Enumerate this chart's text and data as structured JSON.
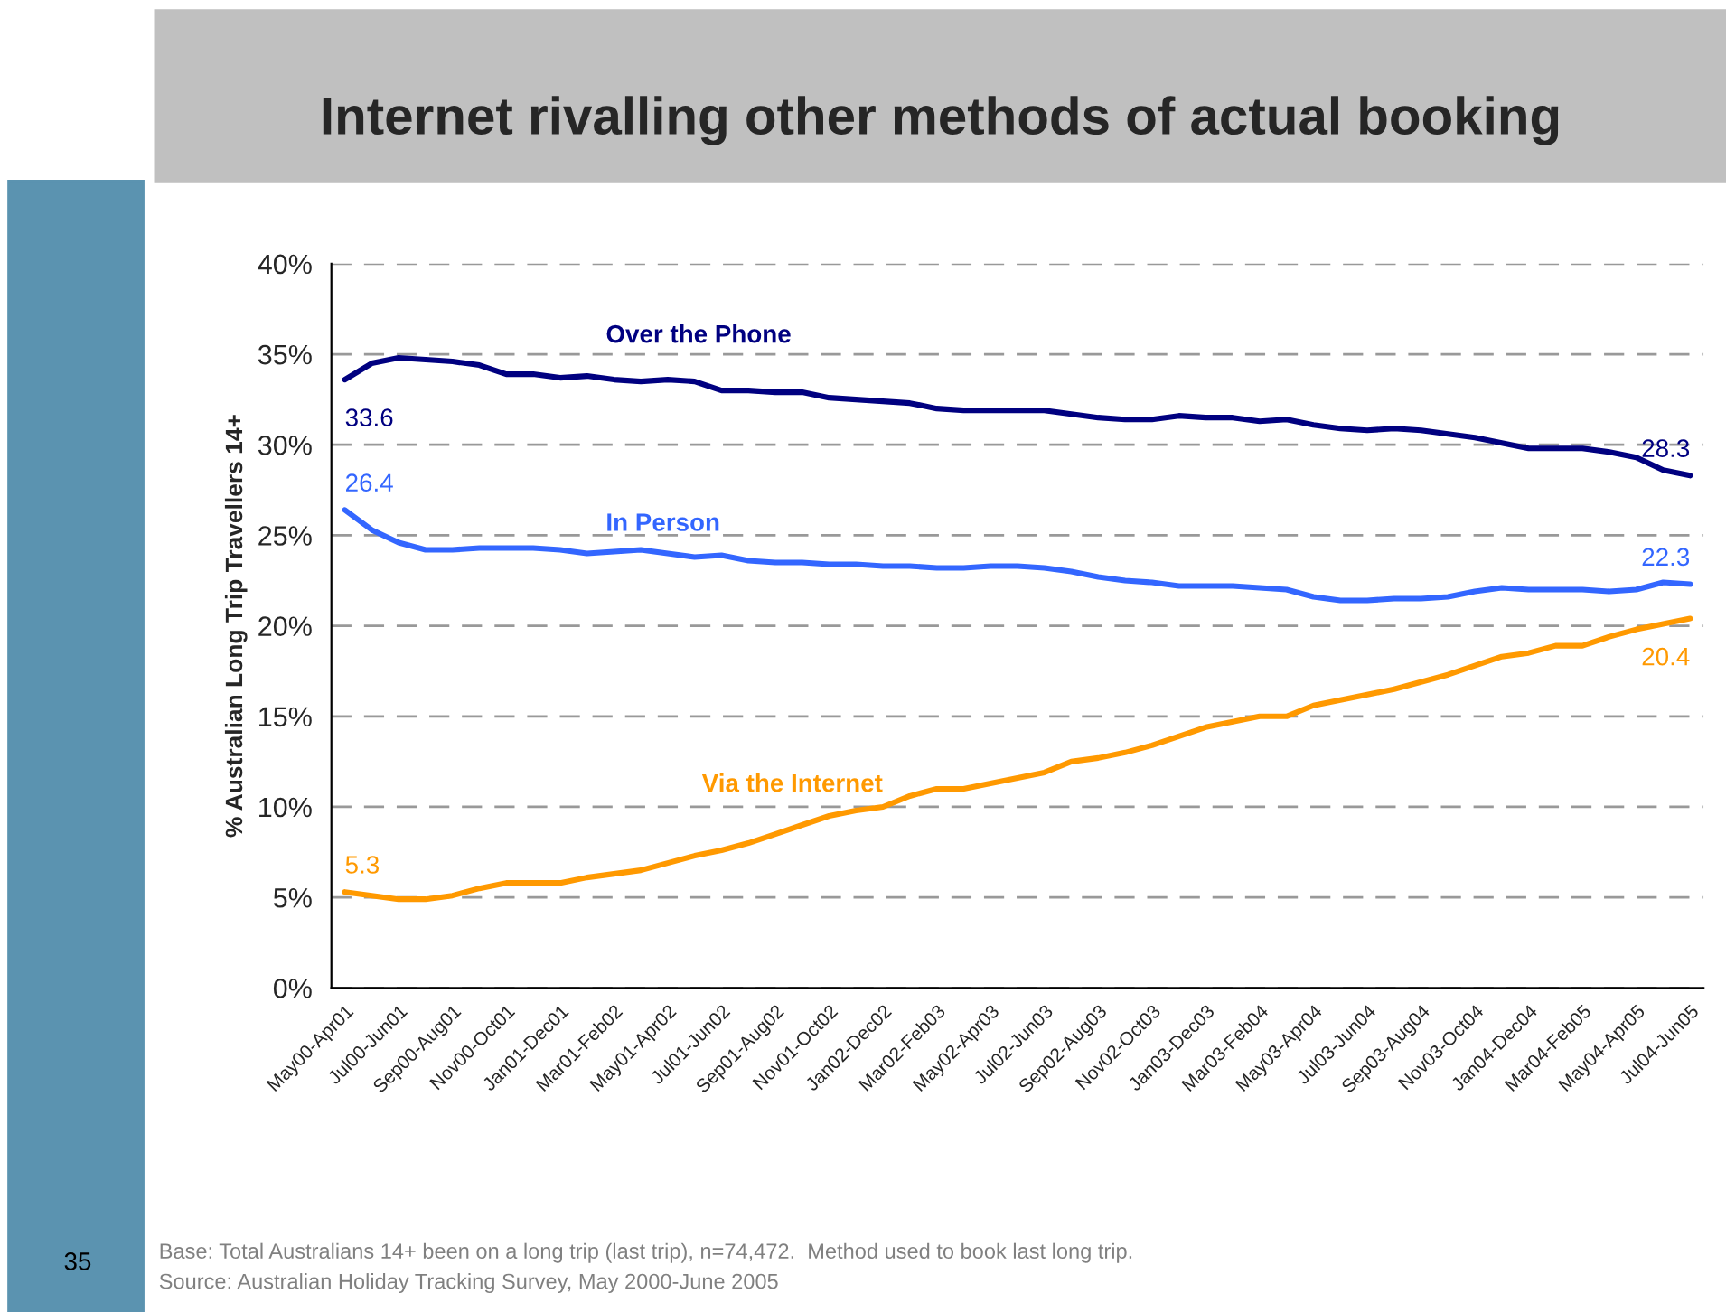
{
  "chart_data": {
    "type": "line",
    "title": "Internet rivalling other methods of actual booking",
    "ylabel": "% Australian Long Trip Travellers 14+",
    "categories": [
      "May00-Apr01",
      null,
      "Jul00-Jun01",
      null,
      "Sep00-Aug01",
      null,
      "Nov00-Oct01",
      null,
      "Jan01-Dec01",
      null,
      "Mar01-Feb02",
      null,
      "May01-Apr02",
      null,
      "Jul01-Jun02",
      null,
      "Sep01-Aug02",
      null,
      "Nov01-Oct02",
      null,
      "Jan02-Dec02",
      null,
      "Mar02-Feb03",
      null,
      "May02-Apr03",
      null,
      "Jul02-Jun03",
      null,
      "Sep02-Aug03",
      null,
      "Nov02-Oct03",
      null,
      "Jan03-Dec03",
      null,
      "Mar03-Feb04",
      null,
      "May03-Apr04",
      null,
      "Jul03-Jun04",
      null,
      "Sep03-Aug04",
      null,
      "Nov03-Oct04",
      null,
      "Jan04-Dec04",
      null,
      "Mar04-Feb05",
      null,
      "May04-Apr05",
      null,
      "Jul04-Jun05"
    ],
    "series": [
      {
        "name": "Over the Phone",
        "color": "#000080",
        "values": [
          33.6,
          34.5,
          34.8,
          34.7,
          34.6,
          34.4,
          33.9,
          33.9,
          33.7,
          33.8,
          33.6,
          33.5,
          33.6,
          33.5,
          33.0,
          33.0,
          32.9,
          32.9,
          32.6,
          32.5,
          32.4,
          32.3,
          32.0,
          31.9,
          31.9,
          31.9,
          31.9,
          31.7,
          31.5,
          31.4,
          31.4,
          31.6,
          31.5,
          31.5,
          31.3,
          31.4,
          31.1,
          30.9,
          30.8,
          30.9,
          30.8,
          30.6,
          30.4,
          30.1,
          29.8,
          29.8,
          29.8,
          29.6,
          29.3,
          28.6,
          28.3
        ],
        "value_labels": [
          "33.6",
          null,
          null,
          null,
          null,
          null,
          null,
          null,
          null,
          null,
          null,
          null,
          null,
          null,
          null,
          null,
          null,
          null,
          null,
          null,
          null,
          null,
          null,
          null,
          null,
          null,
          null,
          null,
          null,
          null,
          null,
          null,
          null,
          null,
          null,
          null,
          null,
          null,
          null,
          null,
          null,
          null,
          null,
          null,
          null,
          null,
          null,
          null,
          null,
          null,
          "28.3"
        ]
      },
      {
        "name": "In Person",
        "color": "#3366ff",
        "values": [
          26.4,
          25.3,
          24.6,
          24.2,
          24.2,
          24.3,
          24.3,
          24.3,
          24.2,
          24.0,
          24.1,
          24.2,
          24.0,
          23.8,
          23.9,
          23.6,
          23.5,
          23.5,
          23.4,
          23.4,
          23.3,
          23.3,
          23.2,
          23.2,
          23.3,
          23.3,
          23.2,
          23.0,
          22.7,
          22.5,
          22.4,
          22.2,
          22.2,
          22.2,
          22.1,
          22.0,
          21.6,
          21.4,
          21.4,
          21.5,
          21.5,
          21.6,
          21.9,
          22.1,
          22.0,
          22.0,
          22.0,
          21.9,
          22.0,
          22.4,
          22.3
        ],
        "value_labels": [
          "26.4",
          null,
          null,
          null,
          null,
          null,
          null,
          null,
          null,
          null,
          null,
          null,
          null,
          null,
          null,
          null,
          null,
          null,
          null,
          null,
          null,
          null,
          null,
          null,
          null,
          null,
          null,
          null,
          null,
          null,
          null,
          null,
          null,
          null,
          null,
          null,
          null,
          null,
          null,
          null,
          null,
          null,
          null,
          null,
          null,
          null,
          null,
          null,
          null,
          null,
          "22.3"
        ]
      },
      {
        "name": "Via the Internet",
        "color": "#ff9900",
        "values": [
          5.3,
          5.1,
          4.9,
          4.9,
          5.1,
          5.5,
          5.8,
          5.8,
          5.8,
          6.1,
          6.3,
          6.5,
          6.9,
          7.3,
          7.6,
          8.0,
          8.5,
          9.0,
          9.5,
          9.8,
          10.0,
          10.6,
          11.0,
          11.0,
          11.3,
          11.6,
          11.9,
          12.5,
          12.7,
          13.0,
          13.4,
          13.9,
          14.4,
          14.7,
          15.0,
          15.0,
          15.6,
          15.9,
          16.2,
          16.5,
          16.9,
          17.3,
          17.8,
          18.3,
          18.5,
          18.9,
          18.9,
          19.4,
          19.8,
          20.1,
          20.4
        ],
        "value_labels": [
          "5.3",
          null,
          null,
          null,
          null,
          null,
          null,
          null,
          null,
          null,
          null,
          null,
          null,
          null,
          null,
          null,
          null,
          null,
          null,
          null,
          null,
          null,
          null,
          null,
          null,
          null,
          null,
          null,
          null,
          null,
          null,
          null,
          null,
          null,
          null,
          null,
          null,
          null,
          null,
          null,
          null,
          null,
          null,
          null,
          null,
          null,
          null,
          null,
          null,
          null,
          "20.4"
        ]
      }
    ],
    "ylim": [
      0,
      40
    ],
    "yticks": [
      {
        "value": 0,
        "label": "0%"
      },
      {
        "value": 5,
        "label": "5%"
      },
      {
        "value": 10,
        "label": "10%"
      },
      {
        "value": 15,
        "label": "15%"
      },
      {
        "value": 20,
        "label": "20%"
      },
      {
        "value": 25,
        "label": "25%"
      },
      {
        "value": 30,
        "label": "30%"
      },
      {
        "value": 35,
        "label": "35%"
      },
      {
        "value": 40,
        "label": "40%"
      }
    ],
    "grid": "y",
    "legend": false,
    "marker": "none",
    "line_style": "solid",
    "annotations": [
      "Base: Total Australians 14+ been on a long trip (last trip), n=74,472.  Method used to book last long trip.",
      "Source: Australian Holiday Tracking Survey, May 2000-June 2005",
      "35"
    ]
  }
}
